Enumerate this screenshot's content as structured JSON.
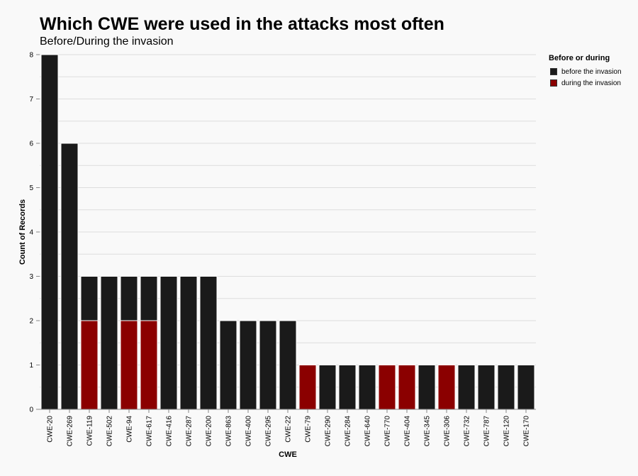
{
  "title": "Which CWE were used in the attacks most often",
  "subtitle": "Before/During the invasion",
  "legend": {
    "title": "Before or during",
    "items": [
      {
        "label": "before the invasion",
        "color": "#1a1a1a"
      },
      {
        "label": "during the invasion",
        "color": "#8b0000"
      }
    ]
  },
  "chart_data": {
    "type": "bar",
    "stacked": true,
    "xlabel": "CWE",
    "ylabel": "Count of Records",
    "ylim": [
      0,
      8
    ],
    "yticks": [
      0,
      1,
      2,
      3,
      4,
      5,
      6,
      7,
      8
    ],
    "grid": true,
    "legend_position": "top-right",
    "categories": [
      "CWE-20",
      "CWE-269",
      "CWE-119",
      "CWE-502",
      "CWE-94",
      "CWE-617",
      "CWE-416",
      "CWE-287",
      "CWE-200",
      "CWE-863",
      "CWE-400",
      "CWE-295",
      "CWE-22",
      "CWE-79",
      "CWE-290",
      "CWE-284",
      "CWE-640",
      "CWE-770",
      "CWE-404",
      "CWE-345",
      "CWE-306",
      "CWE-732",
      "CWE-787",
      "CWE-120",
      "CWE-170"
    ],
    "series": [
      {
        "name": "during the invasion",
        "color": "#8b0000",
        "values": [
          0,
          0,
          2,
          0,
          2,
          2,
          0,
          0,
          0,
          0,
          0,
          0,
          0,
          1,
          0,
          0,
          0,
          1,
          1,
          0,
          1,
          0,
          0,
          0,
          0
        ]
      },
      {
        "name": "before the invasion",
        "color": "#1a1a1a",
        "values": [
          8,
          6,
          1,
          3,
          1,
          1,
          3,
          3,
          3,
          2,
          2,
          2,
          2,
          0,
          1,
          1,
          1,
          0,
          0,
          1,
          0,
          1,
          1,
          1,
          1
        ]
      }
    ]
  }
}
